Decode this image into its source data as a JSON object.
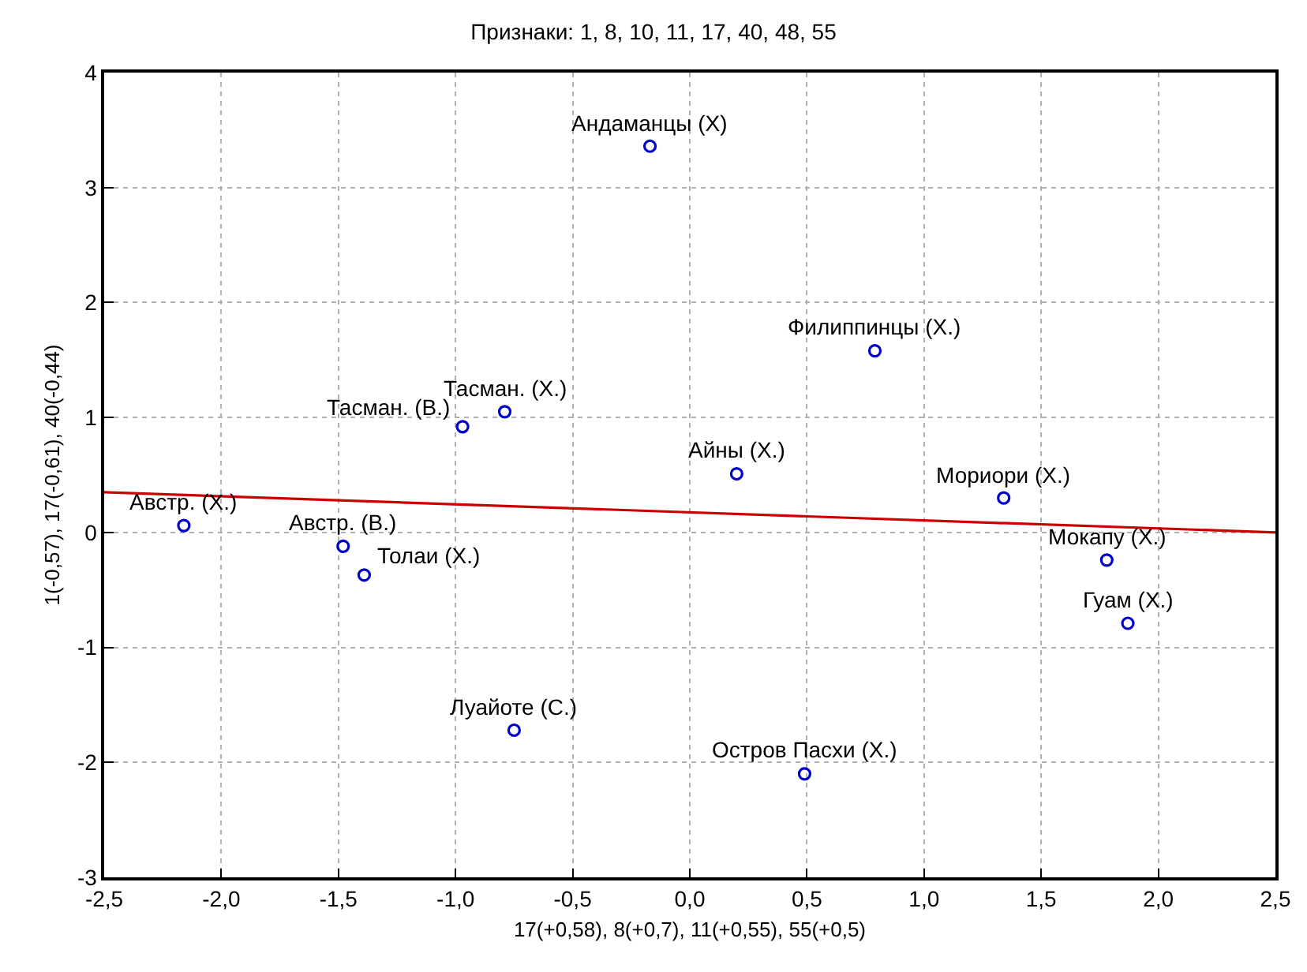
{
  "chart_data": {
    "type": "scatter",
    "title": "Признаки: 1, 8, 10, 11, 17, 40, 48, 55",
    "xlabel": "17(+0,58), 8(+0,7), 11(+0,55), 55(+0,5)",
    "ylabel": "1(-0,57), 17(-0,61), 40(-0,44)",
    "series": [
      {
        "color": "#0000cc",
        "marker": "circle",
        "x": [
          -0.17,
          -0.79,
          -0.97,
          0.79,
          0.2,
          1.34,
          1.78,
          1.87,
          0.49,
          -2.16,
          -1.48,
          -1.39,
          -0.75
        ],
        "values": [
          3.36,
          1.05,
          0.92,
          1.58,
          0.51,
          0.3,
          -0.24,
          -0.79,
          -2.1,
          0.06,
          -0.12,
          -0.37,
          -1.72
        ]
      },
      {
        "type": "line",
        "color": "#cc0000",
        "marker": "none",
        "line_style": "solid",
        "x": [
          -2.5,
          2.5
        ],
        "values": [
          0.35,
          0.0
        ]
      }
    ],
    "annotations": [
      {
        "text": "Андаманцы (X)",
        "x": -0.17,
        "y": 3.36
      },
      {
        "text": "Тасман. (X.)",
        "x": -0.79,
        "y": 1.05
      },
      {
        "text": "Тасман. (В.)",
        "x": -0.97,
        "y": 0.92
      },
      {
        "text": "Филиппинцы (X.)",
        "x": 0.79,
        "y": 1.58
      },
      {
        "text": "Айны (X.)",
        "x": 0.2,
        "y": 0.51
      },
      {
        "text": "Мориори (X.)",
        "x": 1.34,
        "y": 0.3
      },
      {
        "text": "Мокапу (X.)",
        "x": 1.78,
        "y": -0.24
      },
      {
        "text": "Гуам (X.)",
        "x": 1.87,
        "y": -0.79
      },
      {
        "text": "Остров Пасхи (X.)",
        "x": 0.49,
        "y": -2.1
      },
      {
        "text": "Австр. (X.)",
        "x": -2.16,
        "y": 0.06
      },
      {
        "text": "Австр. (В.)",
        "x": -1.48,
        "y": -0.12
      },
      {
        "text": "Толаи (X.)",
        "x": -1.39,
        "y": -0.37
      },
      {
        "text": "Луайоте (С.)",
        "x": -0.75,
        "y": -1.72
      }
    ],
    "xlim": [
      -2.5,
      2.5
    ],
    "xticks": [
      {
        "value": -2.5,
        "label": "-2,5"
      },
      {
        "value": -2,
        "label": "-2,0"
      },
      {
        "value": -1.5,
        "label": "-1,5"
      },
      {
        "value": -1,
        "label": "-1,0"
      },
      {
        "value": -0.5,
        "label": "-0,5"
      },
      {
        "value": 0,
        "label": "0,0"
      },
      {
        "value": 0.5,
        "label": "0,5"
      },
      {
        "value": 1,
        "label": "1,0"
      },
      {
        "value": 1.5,
        "label": "1,5"
      },
      {
        "value": 2,
        "label": "2,0"
      },
      {
        "value": 2.5,
        "label": "2,5"
      }
    ],
    "ylim": [
      -3,
      4
    ],
    "yticks": [
      -3,
      -2,
      -1,
      0,
      1,
      2,
      3,
      4
    ],
    "grid": true
  }
}
